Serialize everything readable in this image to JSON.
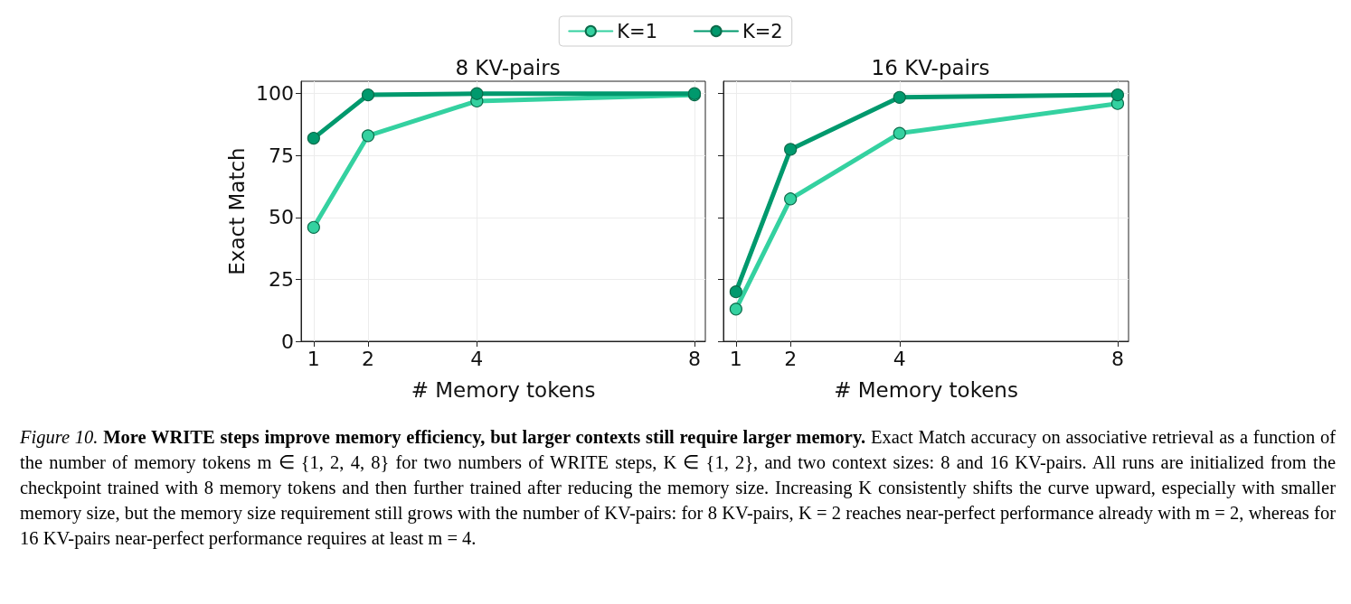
{
  "chart_data": [
    {
      "type": "line",
      "title": "8 KV-pairs",
      "xlabel": "# Memory tokens",
      "ylabel": "Exact Match",
      "x": [
        1,
        2,
        4,
        8
      ],
      "series": [
        {
          "name": "K=1",
          "color": "#34d1a0",
          "values": [
            46,
            83,
            97,
            99.5
          ]
        },
        {
          "name": "K=2",
          "color": "#00996d",
          "values": [
            82,
            99.5,
            100,
            100
          ]
        }
      ],
      "xlim": [
        0.77,
        8.2
      ],
      "xticks": [
        1,
        2,
        4,
        8
      ],
      "ylim": [
        0,
        105
      ],
      "yticks": [
        0,
        25,
        50,
        75,
        100
      ],
      "grid": true,
      "legend": "top",
      "marker": "circle",
      "line_style": "solid"
    },
    {
      "type": "line",
      "title": "16 KV-pairs",
      "xlabel": "# Memory tokens",
      "x": [
        1,
        2,
        4,
        8
      ],
      "series": [
        {
          "color": "#34d1a0",
          "values": [
            13,
            57.5,
            84,
            96
          ]
        },
        {
          "color": "#00996d",
          "values": [
            20,
            77.5,
            98.5,
            99.5
          ]
        }
      ],
      "xlim": [
        0.77,
        8.2
      ],
      "xticks": [
        1,
        2,
        4,
        8
      ],
      "ylim": [
        0,
        105
      ],
      "yticks": [
        0,
        25,
        50,
        75,
        100
      ],
      "grid": true,
      "legend": false,
      "marker": "circle",
      "line_style": "solid",
      "tick_labels": "x",
      "annotations": [
        "Figure 10.",
        "More WRITE steps improve memory efficiency, but larger contexts still require larger memory.",
        "Exact Match accuracy on associative retrieval as a function of the number of memory tokens m ∈ {1, 2, 4, 8} for two numbers of WRITE steps, K ∈ {1, 2}, and two context sizes: 8 and 16 KV-pairs. All runs are initialized from the checkpoint trained with 8 memory tokens and then further trained after reducing the memory size. Increasing K consistently shifts the curve upward, especially with smaller memory size, but the memory size requirement still grows with the number of KV-pairs: for 8 KV-pairs, K = 2 reaches near-perfect performance already with m = 2, whereas for 16 KV-pairs near-perfect performance requires at least m = 4."
      ]
    }
  ]
}
